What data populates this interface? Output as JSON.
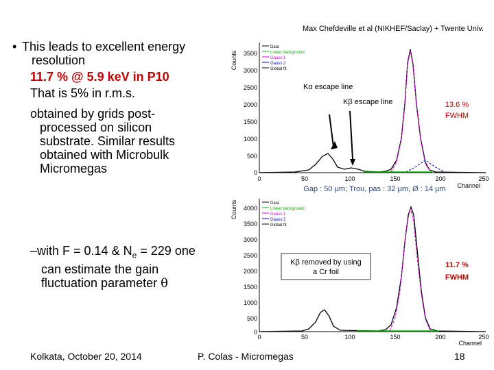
{
  "credit": "Max Chefdeville et al (NIKHEF/Saclay) + Twente Univ.",
  "bullet": {
    "symbol": "•",
    "text_line1": "This leads to excellent energy",
    "text_line2": "resolution",
    "highlight": "11.7 % @ 5.9 keV in P10",
    "rms_line": "That is 5% in r.m.s.",
    "obtained_line1": "obtained by grids post-",
    "obtained_line2": "processed on silicon",
    "obtained_line3": "substrate. Similar results",
    "obtained_line4": "obtained with Microbulk",
    "obtained_line5": "Micromegas"
  },
  "sub_bullet": {
    "dash": "–",
    "line1_a": "with F = 0.14 & N",
    "line1_sub": "e",
    "line1_b": " = 229 one",
    "line2": "can estimate the gain",
    "line3": "fluctuation parameter",
    "symbol": "θ"
  },
  "footer": {
    "left": "Kolkata, October 20, 2014",
    "center": "P. Colas - Micromegas",
    "page": "18"
  },
  "colors": {
    "red": "#c00000",
    "data": "#000000",
    "linear_bg": "#00b000",
    "gauss1": "#e000e0",
    "gauss2": "#0000c0",
    "global": "#000000"
  },
  "top_plot": {
    "ylabel": "Counts",
    "xlabel": "Channel",
    "yticks": [
      "3500",
      "3000",
      "2500",
      "2000",
      "1500",
      "1000",
      "500",
      "0"
    ],
    "xticks": [
      "0",
      "50",
      "100",
      "150",
      "200",
      "250"
    ],
    "legend": [
      "Data",
      "Linear background",
      "Gauss 1",
      "Gauss 2",
      "Global fit"
    ],
    "annotation1": "Kα escape line",
    "annotation2": "Kβ escape line",
    "fwhm_line1": "13.6 %",
    "fwhm_line2": "FWHM",
    "caption": "Gap : 50 μm; Trou, pas : 32 μm, Ø : 14 μm"
  },
  "bottom_plot": {
    "ylabel": "Counts",
    "xlabel": "Channel",
    "yticks": [
      "4000",
      "3500",
      "3000",
      "2500",
      "2000",
      "1500",
      "1000",
      "500",
      "0"
    ],
    "xticks": [
      "0",
      "50",
      "100",
      "150",
      "200",
      "250"
    ],
    "legend": [
      "Data",
      "Linear background",
      "Gauss 1",
      "Gauss 2",
      "Global fit"
    ],
    "box_line1": "Kβ removed by using",
    "box_line2": "a Cr foil",
    "fwhm_line1": "11.7 %",
    "fwhm_line2": "FWHM"
  }
}
